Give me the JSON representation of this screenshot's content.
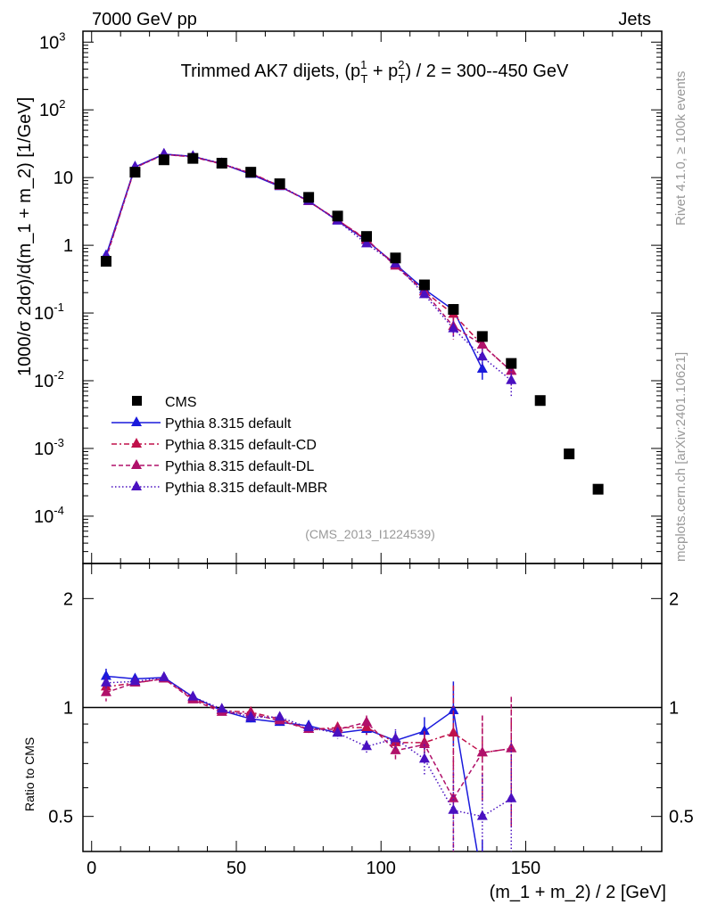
{
  "header": {
    "left": "7000 GeV pp",
    "right": "Jets"
  },
  "side_labels": {
    "rivet": "Rivet 4.1.0, ≥ 100k events",
    "mcplots": "mcplots.cern.ch [arXiv:2401.10621]"
  },
  "chart_data": {
    "type": "scatter",
    "title_parts": {
      "a": "Trimmed AK7 dijets, (p",
      "sub1": "T",
      "sup1": "1",
      "b": " + p",
      "sub2": "T",
      "sup2": "2",
      "c": ") / 2 = 300--450 GeV"
    },
    "analysis_tag": "(CMS_2013_I1224539)",
    "ylabel": "1000/σ  2dσ)/d(m_1 + m_2) [1/GeV]",
    "ratio_ylabel": "Ratio to CMS",
    "xlabel": "(m_1 + m_2) / 2 [GeV]",
    "xlim": [
      -3,
      197
    ],
    "ylim": [
      2e-05,
      1450
    ],
    "ratio_ylim": [
      0.4,
      2.5
    ],
    "x_ticks": [
      "0",
      "50",
      "100",
      "150"
    ],
    "y_ticks": [
      "10^-4",
      "10^-3",
      "10^-2",
      "10^-1",
      "1",
      "10",
      "10^2",
      "10^3"
    ],
    "ratio_ticks": [
      "0.5",
      "1",
      "2"
    ],
    "legend_position": "bottom-left",
    "x": [
      5,
      15,
      25,
      35,
      45,
      55,
      65,
      75,
      85,
      95,
      105,
      115,
      125,
      135,
      145,
      155,
      165,
      175
    ],
    "data": {
      "name": "CMS",
      "values": [
        0.58,
        12,
        18.3,
        19.2,
        16.3,
        12,
        8.1,
        5.1,
        2.7,
        1.35,
        0.65,
        0.26,
        0.113,
        0.045,
        0.018,
        0.0051,
        0.00083,
        0.00025
      ]
    },
    "series": [
      {
        "name": "Pythia 8.315 default",
        "color": "#1a1adc",
        "dash": "",
        "ratio": [
          1.22,
          1.2,
          1.21,
          1.07,
          0.98,
          0.93,
          0.91,
          0.89,
          0.85,
          0.87,
          0.81,
          0.86,
          0.98,
          0.33,
          null
        ],
        "ratio_err": [
          0.06,
          0.02,
          0.02,
          0.02,
          0.02,
          0.02,
          0.02,
          0.02,
          0.02,
          0.03,
          0.05,
          0.08,
          0.2,
          0.1,
          0
        ]
      },
      {
        "name": "Pythia 8.315 default-CD",
        "color": "#c0104a",
        "dash": "6,3,2,3",
        "ratio": [
          1.14,
          1.17,
          1.2,
          1.06,
          0.98,
          0.97,
          0.93,
          0.87,
          0.88,
          0.88,
          0.8,
          0.8,
          0.85,
          0.75,
          0.77
        ],
        "ratio_err": [
          0.05,
          0.02,
          0.02,
          0.02,
          0.02,
          0.02,
          0.02,
          0.02,
          0.03,
          0.04,
          0.05,
          0.06,
          0.3,
          0.2,
          0.3
        ]
      },
      {
        "name": "Pythia 8.315 default-DL",
        "color": "#b0106a",
        "dash": "5,3",
        "ratio": [
          1.1,
          1.17,
          1.2,
          1.05,
          0.97,
          0.96,
          0.92,
          0.87,
          0.87,
          0.91,
          0.76,
          0.79,
          0.56,
          0.75,
          0.77
        ],
        "ratio_err": [
          0.06,
          0.02,
          0.02,
          0.02,
          0.02,
          0.02,
          0.02,
          0.02,
          0.03,
          0.04,
          0.05,
          0.06,
          0.2,
          0.2,
          0.3
        ]
      },
      {
        "name": "Pythia 8.315 default-MBR",
        "color": "#4a10c0",
        "dash": "1.5,2.5",
        "ratio": [
          1.17,
          1.18,
          1.21,
          1.07,
          0.99,
          0.94,
          0.94,
          0.88,
          0.85,
          0.78,
          0.82,
          0.72,
          0.52,
          0.5,
          0.56
        ],
        "ratio_err": [
          0.05,
          0.02,
          0.02,
          0.02,
          0.02,
          0.02,
          0.02,
          0.02,
          0.03,
          0.03,
          0.05,
          0.07,
          0.15,
          0.15,
          0.25
        ]
      }
    ]
  }
}
